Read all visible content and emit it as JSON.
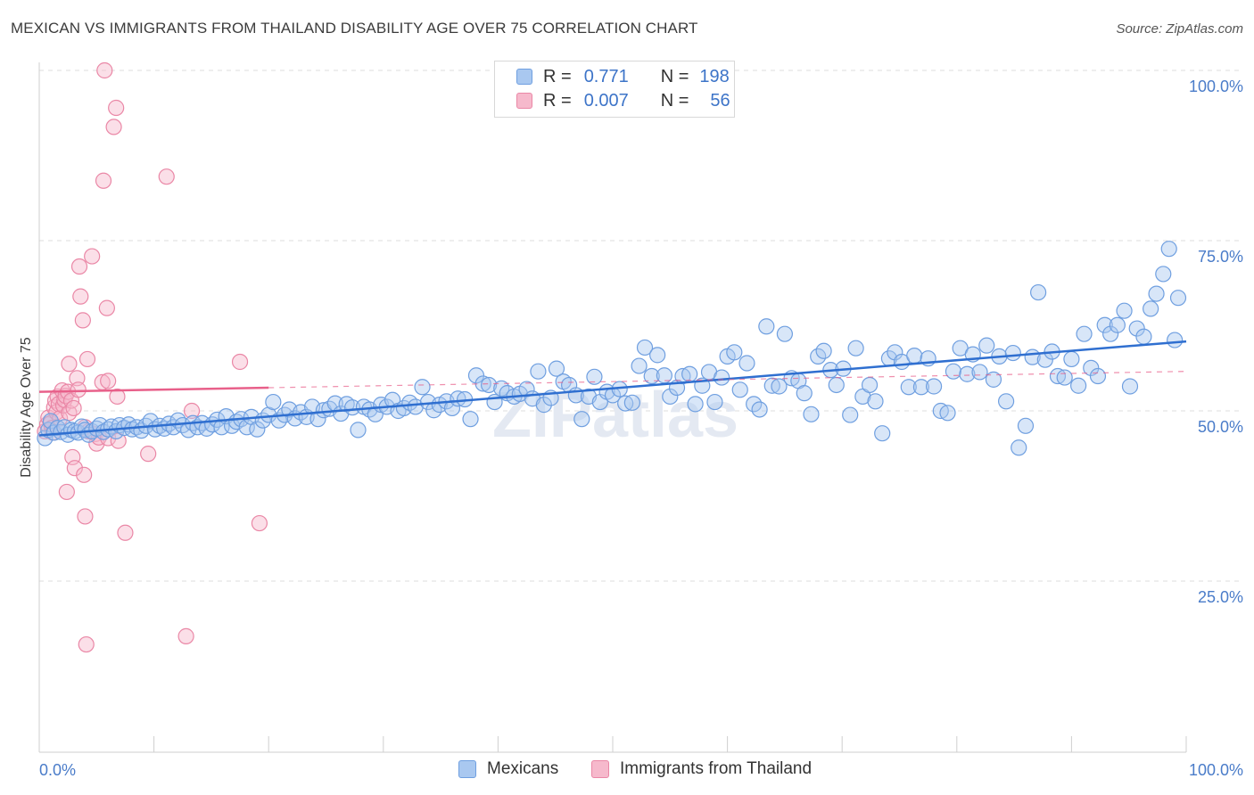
{
  "title": "MEXICAN VS IMMIGRANTS FROM THAILAND DISABILITY AGE OVER 75 CORRELATION CHART",
  "source": "Source: ZipAtlas.com",
  "watermark": "ZIPatlas",
  "legend": {
    "rows": [
      {
        "r_label": "R =",
        "r_value": "0.771",
        "n_label": "N =",
        "n_value": "198",
        "series": "Mexicans"
      },
      {
        "r_label": "R =",
        "r_value": "0.007",
        "n_label": "N =",
        "n_value": "56",
        "series": "Immigrants from Thailand"
      }
    ]
  },
  "colors": {
    "blue_fill": "#a9c8f0",
    "blue_stroke": "#6f9fe0",
    "blue_line": "#2f6fd0",
    "pink_fill": "#f6b9cc",
    "pink_stroke": "#ea87a6",
    "pink_line": "#e8608a",
    "tick_label": "#4a7cc9",
    "grid": "#dddddd"
  },
  "chart_data": {
    "type": "scatter",
    "title": "MEXICAN VS IMMIGRANTS FROM THAILAND DISABILITY AGE OVER 75 CORRELATION CHART",
    "ylabel": "Disability Age Over 75",
    "xlabel": "",
    "xlim": [
      0,
      100
    ],
    "ylim": [
      2,
      102
    ],
    "y_ticks": [
      {
        "value": 25,
        "label": "25.0%"
      },
      {
        "value": 50,
        "label": "50.0%"
      },
      {
        "value": 75,
        "label": "75.0%"
      },
      {
        "value": 100,
        "label": "100.0%"
      }
    ],
    "x_tick_labels": {
      "left": "0.0%",
      "right": "100.0%"
    },
    "series": [
      {
        "name": "Mexicans",
        "color": "blue",
        "trend": {
          "x0": 0,
          "y0": 46.4,
          "x1": 100,
          "y1": 60.2
        },
        "points": [
          [
            0.5,
            46
          ],
          [
            0.8,
            47.2
          ],
          [
            1,
            48.5
          ],
          [
            1.3,
            46.8
          ],
          [
            1.6,
            47.5
          ],
          [
            1.9,
            46.9
          ],
          [
            2.2,
            47.6
          ],
          [
            2.5,
            46.5
          ],
          [
            2.8,
            47.2
          ],
          [
            3.1,
            47
          ],
          [
            3.4,
            46.8
          ],
          [
            3.7,
            47.7
          ],
          [
            4,
            47.2
          ],
          [
            4.3,
            46.5
          ],
          [
            4.6,
            47
          ],
          [
            5,
            47.4
          ],
          [
            5.3,
            47.9
          ],
          [
            5.6,
            46.9
          ],
          [
            6,
            47.3
          ],
          [
            6.3,
            47.7
          ],
          [
            6.7,
            47
          ],
          [
            7,
            47.9
          ],
          [
            7.4,
            47.5
          ],
          [
            7.8,
            48
          ],
          [
            8.1,
            47.3
          ],
          [
            8.5,
            47.6
          ],
          [
            8.9,
            47.1
          ],
          [
            9.3,
            47.8
          ],
          [
            9.7,
            48.5
          ],
          [
            10.1,
            47.3
          ],
          [
            10.5,
            47.8
          ],
          [
            10.9,
            47.4
          ],
          [
            11.3,
            48.1
          ],
          [
            11.7,
            47.6
          ],
          [
            12.1,
            48.6
          ],
          [
            12.5,
            47.9
          ],
          [
            13,
            47.2
          ],
          [
            13.4,
            48.2
          ],
          [
            13.8,
            47.6
          ],
          [
            14.2,
            48.2
          ],
          [
            14.6,
            47.4
          ],
          [
            15.1,
            48
          ],
          [
            15.5,
            48.7
          ],
          [
            15.9,
            47.6
          ],
          [
            16.3,
            49.2
          ],
          [
            16.8,
            47.8
          ],
          [
            17.2,
            48.4
          ],
          [
            17.6,
            48.8
          ],
          [
            18.1,
            47.6
          ],
          [
            18.5,
            49.1
          ],
          [
            19,
            47.3
          ],
          [
            19.5,
            48.6
          ],
          [
            20,
            49.4
          ],
          [
            20.4,
            51.3
          ],
          [
            20.9,
            48.6
          ],
          [
            21.4,
            49.4
          ],
          [
            21.8,
            50.2
          ],
          [
            22.3,
            48.9
          ],
          [
            22.8,
            49.8
          ],
          [
            23.3,
            49.1
          ],
          [
            23.8,
            50.6
          ],
          [
            24.3,
            48.8
          ],
          [
            24.8,
            50.1
          ],
          [
            25.3,
            50.3
          ],
          [
            25.8,
            51.1
          ],
          [
            26.3,
            49.6
          ],
          [
            26.8,
            51
          ],
          [
            27.3,
            50.5
          ],
          [
            27.8,
            47.2
          ],
          [
            28.3,
            50.6
          ],
          [
            28.8,
            50.2
          ],
          [
            29.3,
            49.5
          ],
          [
            29.8,
            50.9
          ],
          [
            30.3,
            50.6
          ],
          [
            30.8,
            51.6
          ],
          [
            31.3,
            50
          ],
          [
            31.8,
            50.4
          ],
          [
            32.3,
            51.2
          ],
          [
            32.8,
            50.6
          ],
          [
            33.4,
            53.5
          ],
          [
            33.9,
            51.3
          ],
          [
            34.4,
            50.1
          ],
          [
            34.9,
            50.9
          ],
          [
            35.5,
            51.4
          ],
          [
            36,
            50.4
          ],
          [
            36.5,
            51.8
          ],
          [
            37.1,
            51.7
          ],
          [
            37.6,
            48.8
          ],
          [
            38.1,
            55.2
          ],
          [
            38.7,
            54
          ],
          [
            39.2,
            53.8
          ],
          [
            39.7,
            51.3
          ],
          [
            40.3,
            53.3
          ],
          [
            40.8,
            52.6
          ],
          [
            41.4,
            52.1
          ],
          [
            41.9,
            52.5
          ],
          [
            42.5,
            53.2
          ],
          [
            43,
            51.8
          ],
          [
            43.5,
            55.8
          ],
          [
            44,
            50.9
          ],
          [
            44.6,
            51.9
          ],
          [
            45.1,
            56.2
          ],
          [
            45.7,
            54.3
          ],
          [
            46.2,
            53.8
          ],
          [
            46.8,
            52.3
          ],
          [
            47.3,
            48.8
          ],
          [
            47.9,
            52.1
          ],
          [
            48.4,
            55
          ],
          [
            48.9,
            51.3
          ],
          [
            49.5,
            52.8
          ],
          [
            50,
            52.3
          ],
          [
            50.6,
            53.2
          ],
          [
            51.1,
            51.1
          ],
          [
            51.7,
            51.2
          ],
          [
            52.3,
            56.6
          ],
          [
            52.8,
            59.3
          ],
          [
            53.4,
            55.1
          ],
          [
            53.9,
            58.2
          ],
          [
            54.5,
            55.2
          ],
          [
            55,
            52.1
          ],
          [
            55.6,
            53.4
          ],
          [
            56.1,
            55.1
          ],
          [
            56.7,
            55.4
          ],
          [
            57.2,
            51
          ],
          [
            57.8,
            53.7
          ],
          [
            58.4,
            55.7
          ],
          [
            58.9,
            51.3
          ],
          [
            59.5,
            54.9
          ],
          [
            60,
            58
          ],
          [
            60.6,
            58.6
          ],
          [
            61.1,
            53.1
          ],
          [
            61.7,
            57
          ],
          [
            62.3,
            51
          ],
          [
            62.8,
            50.2
          ],
          [
            63.4,
            62.4
          ],
          [
            63.9,
            53.7
          ],
          [
            64.5,
            53.6
          ],
          [
            65,
            61.3
          ],
          [
            65.6,
            54.8
          ],
          [
            66.2,
            54.4
          ],
          [
            66.7,
            52.6
          ],
          [
            67.3,
            49.5
          ],
          [
            67.9,
            58
          ],
          [
            68.4,
            58.8
          ],
          [
            69,
            56
          ],
          [
            69.5,
            53.8
          ],
          [
            70.1,
            56.2
          ],
          [
            70.7,
            49.4
          ],
          [
            71.2,
            59.2
          ],
          [
            71.8,
            52.1
          ],
          [
            72.4,
            53.8
          ],
          [
            72.9,
            51.4
          ],
          [
            73.5,
            46.7
          ],
          [
            74.1,
            57.7
          ],
          [
            74.6,
            58.6
          ],
          [
            75.2,
            57.2
          ],
          [
            75.8,
            53.5
          ],
          [
            76.3,
            58.1
          ],
          [
            76.9,
            53.5
          ],
          [
            77.5,
            57.7
          ],
          [
            78,
            53.6
          ],
          [
            78.6,
            50
          ],
          [
            79.2,
            49.7
          ],
          [
            79.7,
            55.8
          ],
          [
            80.3,
            59.2
          ],
          [
            80.9,
            55.4
          ],
          [
            81.4,
            58.3
          ],
          [
            82,
            55.7
          ],
          [
            82.6,
            59.6
          ],
          [
            83.2,
            54.6
          ],
          [
            83.7,
            58
          ],
          [
            84.3,
            51.4
          ],
          [
            84.9,
            58.5
          ],
          [
            85.4,
            44.6
          ],
          [
            86,
            47.8
          ],
          [
            86.6,
            57.9
          ],
          [
            87.1,
            67.4
          ],
          [
            87.7,
            57.5
          ],
          [
            88.3,
            58.7
          ],
          [
            88.8,
            55.1
          ],
          [
            89.4,
            54.9
          ],
          [
            90,
            57.6
          ],
          [
            90.6,
            53.7
          ],
          [
            91.1,
            61.3
          ],
          [
            91.7,
            56.3
          ],
          [
            92.3,
            55.1
          ],
          [
            92.9,
            62.6
          ],
          [
            93.4,
            61.3
          ],
          [
            94,
            62.6
          ],
          [
            94.6,
            64.7
          ],
          [
            95.1,
            53.6
          ],
          [
            95.7,
            62.1
          ],
          [
            96.3,
            60.9
          ],
          [
            96.9,
            65
          ],
          [
            97.4,
            67.2
          ],
          [
            98,
            70.1
          ],
          [
            98.5,
            73.8
          ],
          [
            99,
            60.4
          ],
          [
            99.3,
            66.6
          ]
        ]
      },
      {
        "name": "Immigrants from Thailand",
        "color": "pink",
        "trend": {
          "x0": 0,
          "y0": 52.8,
          "x1": 20,
          "y1": 53.4,
          "dashed_to_x": 100,
          "dashed_to_y": 55.8
        },
        "points": [
          [
            0.5,
            47
          ],
          [
            0.7,
            48
          ],
          [
            0.8,
            49
          ],
          [
            1,
            48.2
          ],
          [
            1.1,
            47.5
          ],
          [
            1.2,
            46.8
          ],
          [
            1.3,
            50.5
          ],
          [
            1.4,
            51.5
          ],
          [
            1.5,
            49.8
          ],
          [
            1.6,
            52.1
          ],
          [
            1.7,
            51
          ],
          [
            1.8,
            48.9
          ],
          [
            2,
            53
          ],
          [
            2.1,
            50.8
          ],
          [
            2.2,
            51.6
          ],
          [
            2.3,
            52.2
          ],
          [
            2.5,
            52.8
          ],
          [
            2.6,
            49.7
          ],
          [
            2.8,
            51.5
          ],
          [
            3,
            50.4
          ],
          [
            2.4,
            38.1
          ],
          [
            2.6,
            56.9
          ],
          [
            2.9,
            43.2
          ],
          [
            3.1,
            41.6
          ],
          [
            3.3,
            54.8
          ],
          [
            3.4,
            53.1
          ],
          [
            3.5,
            71.2
          ],
          [
            3.6,
            66.8
          ],
          [
            3.8,
            63.3
          ],
          [
            3.9,
            40.6
          ],
          [
            4,
            47.6
          ],
          [
            4,
            34.5
          ],
          [
            4.2,
            57.6
          ],
          [
            4.3,
            47
          ],
          [
            4.1,
            15.7
          ],
          [
            4.6,
            72.7
          ],
          [
            4.9,
            46.6
          ],
          [
            5,
            45.2
          ],
          [
            5.2,
            46.1
          ],
          [
            5.5,
            54.2
          ],
          [
            5.6,
            83.8
          ],
          [
            5.7,
            100
          ],
          [
            5.9,
            65.1
          ],
          [
            6,
            54.4
          ],
          [
            6,
            46
          ],
          [
            6.5,
            91.7
          ],
          [
            6.7,
            94.5
          ],
          [
            6.8,
            52.1
          ],
          [
            6.9,
            45.6
          ],
          [
            7.5,
            32.1
          ],
          [
            9.5,
            43.7
          ],
          [
            11.1,
            84.4
          ],
          [
            12.8,
            16.9
          ],
          [
            13.3,
            50
          ],
          [
            17.5,
            57.2
          ],
          [
            19.2,
            33.5
          ]
        ]
      }
    ]
  }
}
